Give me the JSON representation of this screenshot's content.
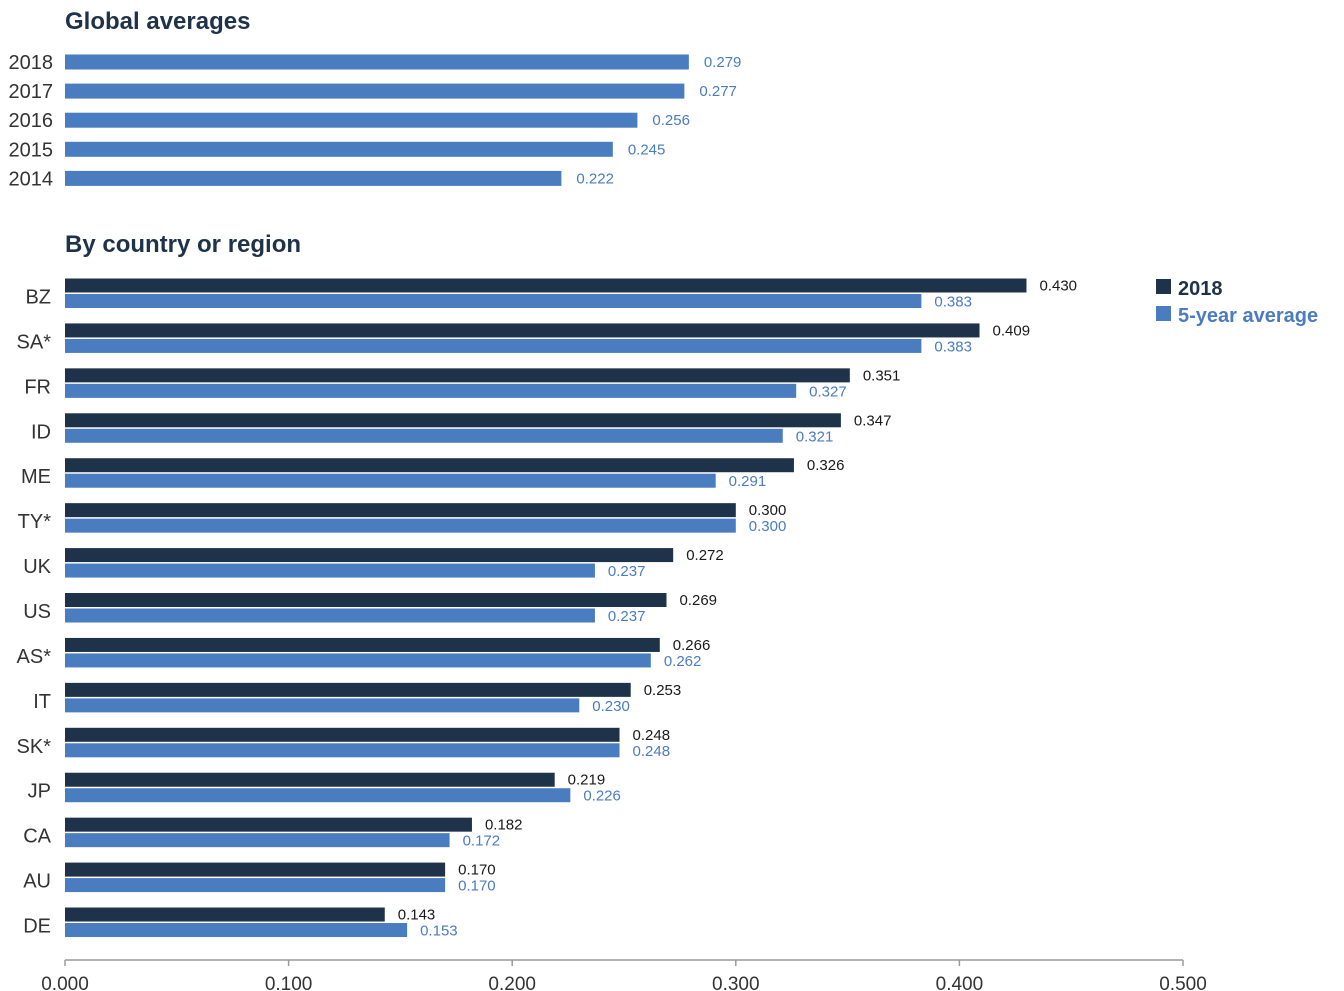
{
  "chart_data": [
    {
      "type": "bar",
      "orientation": "horizontal",
      "title": "Global averages",
      "categories": [
        "2018",
        "2017",
        "2016",
        "2015",
        "2014"
      ],
      "values": [
        0.279,
        0.277,
        0.256,
        0.245,
        0.222
      ],
      "value_labels": [
        "0.279",
        "0.277",
        "0.256",
        "0.245",
        "0.222"
      ],
      "color": "#4a7cc0",
      "xlim": [
        0,
        0.5
      ],
      "grid": false
    },
    {
      "type": "bar",
      "orientation": "horizontal",
      "title": "By country or region",
      "categories": [
        "BZ",
        "SA*",
        "FR",
        "ID",
        "ME",
        "TY*",
        "UK",
        "US",
        "AS*",
        "IT",
        "SK*",
        "JP",
        "CA",
        "AU",
        "DE"
      ],
      "series": [
        {
          "name": "2018",
          "color": "#1e3349",
          "values": [
            0.43,
            0.409,
            0.351,
            0.347,
            0.326,
            0.3,
            0.272,
            0.269,
            0.266,
            0.253,
            0.248,
            0.219,
            0.182,
            0.17,
            0.143
          ],
          "value_labels": [
            "0.430",
            "0.409",
            "0.351",
            "0.347",
            "0.326",
            "0.300",
            "0.272",
            "0.269",
            "0.266",
            "0.253",
            "0.248",
            "0.219",
            "0.182",
            "0.170",
            "0.143"
          ]
        },
        {
          "name": "5-year average",
          "color": "#4a7cc0",
          "values": [
            0.383,
            0.383,
            0.327,
            0.321,
            0.291,
            0.3,
            0.237,
            0.237,
            0.262,
            0.23,
            0.248,
            0.226,
            0.172,
            0.17,
            0.153
          ],
          "value_labels": [
            "0.383",
            "0.383",
            "0.327",
            "0.321",
            "0.291",
            "0.300",
            "0.237",
            "0.237",
            "0.262",
            "0.230",
            "0.248",
            "0.226",
            "0.172",
            "0.170",
            "0.153"
          ]
        }
      ],
      "xlim": [
        0,
        0.5
      ],
      "xticks": [
        "0.000",
        "0.100",
        "0.200",
        "0.300",
        "0.400",
        "0.500"
      ],
      "legend_placement": "top-right",
      "grid": false
    }
  ]
}
